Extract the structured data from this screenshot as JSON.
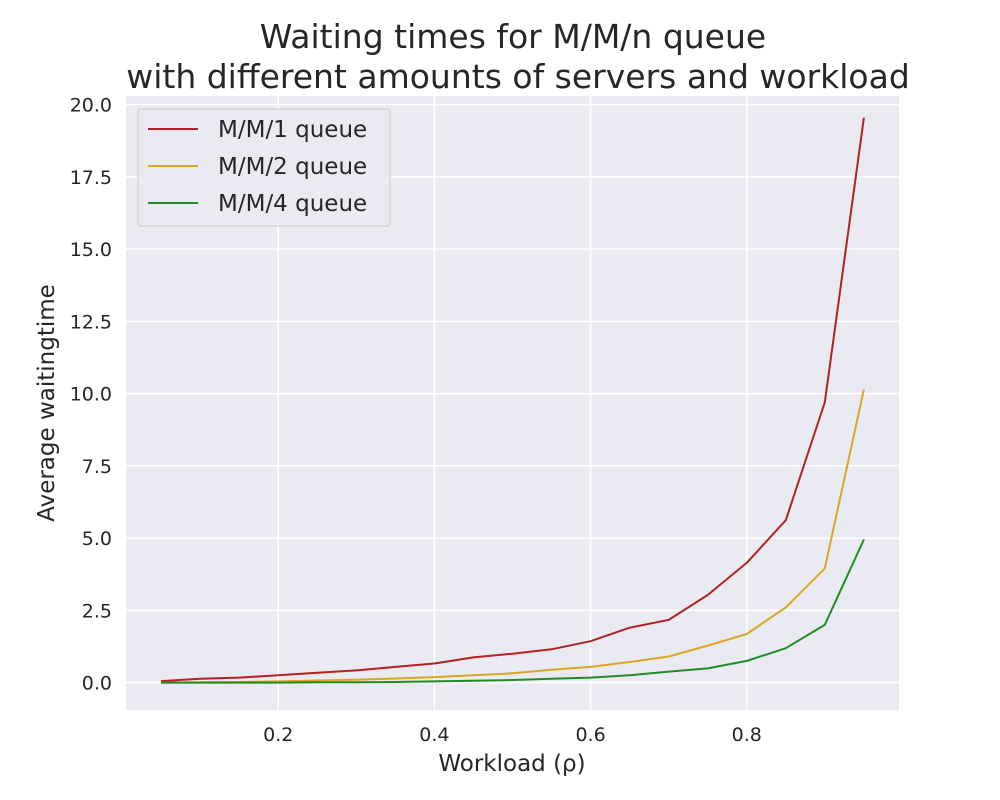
{
  "chart_data": {
    "type": "line",
    "title_lines": [
      "Waiting times for M/M/n queue",
      "with different amounts of servers and workload"
    ],
    "xlabel": "Workload (ρ)",
    "ylabel": "Average waitingtime",
    "xlim": [
      0.005,
      0.995
    ],
    "ylim": [
      -0.95,
      20.3
    ],
    "xticks": [
      0.2,
      0.4,
      0.6,
      0.8
    ],
    "xtick_labels": [
      "0.2",
      "0.4",
      "0.6",
      "0.8"
    ],
    "yticks": [
      0.0,
      2.5,
      5.0,
      7.5,
      10.0,
      12.5,
      15.0,
      17.5,
      20.0
    ],
    "ytick_labels": [
      "0.0",
      "2.5",
      "5.0",
      "7.5",
      "10.0",
      "12.5",
      "15.0",
      "17.5",
      "20.0"
    ],
    "grid": true,
    "legend_position": "top-left",
    "colors": {
      "plot_background": "#eaeaf2",
      "grid": "#ffffff"
    },
    "x": [
      0.05,
      0.1,
      0.15,
      0.2,
      0.25,
      0.3,
      0.35,
      0.4,
      0.45,
      0.5,
      0.55,
      0.6,
      0.65,
      0.7,
      0.75,
      0.8,
      0.85,
      0.9,
      0.95
    ],
    "series": [
      {
        "name": "M/M/1 queue",
        "color": "#b22222",
        "values": [
          0.05,
          0.13,
          0.17,
          0.25,
          0.34,
          0.42,
          0.54,
          0.66,
          0.87,
          1.0,
          1.15,
          1.43,
          1.9,
          2.17,
          3.03,
          4.14,
          5.62,
          9.7,
          19.55
        ]
      },
      {
        "name": "M/M/2 queue",
        "color": "#daa520",
        "values": [
          0.0,
          0.01,
          0.02,
          0.04,
          0.07,
          0.1,
          0.14,
          0.19,
          0.25,
          0.32,
          0.44,
          0.54,
          0.71,
          0.9,
          1.28,
          1.68,
          2.6,
          3.95,
          10.15
        ]
      },
      {
        "name": "M/M/4 queue",
        "color": "#228b22",
        "values": [
          0.0,
          0.0,
          0.0,
          0.0,
          0.01,
          0.01,
          0.02,
          0.04,
          0.06,
          0.09,
          0.13,
          0.17,
          0.25,
          0.38,
          0.49,
          0.75,
          1.19,
          2.0,
          4.95
        ]
      }
    ]
  }
}
